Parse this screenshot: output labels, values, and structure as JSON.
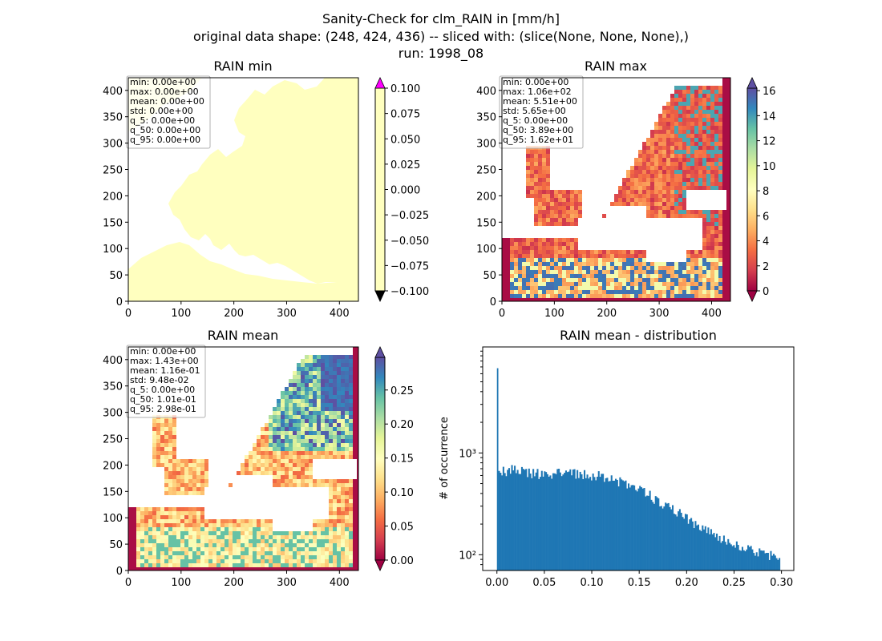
{
  "figure": {
    "title_lines": [
      "Sanity-Check for clm_RAIN in [mm/h]",
      "original data shape: (248, 424, 436) -- sliced with: (slice(None, None, None),)",
      "run: 1998_08"
    ]
  },
  "colors": {
    "cmap_spectral": [
      "#9e0142",
      "#d53e4f",
      "#f46d43",
      "#fdae61",
      "#fee08b",
      "#ffffbf",
      "#e6f598",
      "#abdda4",
      "#66c2a5",
      "#3288bd",
      "#5e4fa2"
    ],
    "min_over": "#ff00ff",
    "under": "#000000",
    "hist_bar": "#1f77b4",
    "stats_box_edge": "#b0b0b0",
    "map_flat": "#ffffbf"
  },
  "chart_data": [
    {
      "type": "heatmap",
      "title": "RAIN min",
      "xticks": [
        "0",
        "100",
        "200",
        "300",
        "400"
      ],
      "yticks": [
        "0",
        "50",
        "100",
        "150",
        "200",
        "250",
        "300",
        "350",
        "400"
      ],
      "xlim": [
        0,
        436
      ],
      "ylim": [
        0,
        424
      ],
      "stats": [
        "min: 0.00e+00",
        "max: 0.00e+00",
        "mean: 0.00e+00",
        "std: 0.00e+00",
        "q_5: 0.00e+00",
        "q_50: 0.00e+00",
        "q_95: 0.00e+00"
      ],
      "colorbar": {
        "ticks": [
          "0.100",
          "0.075",
          "0.050",
          "0.025",
          "0.000",
          "−0.025",
          "−0.050",
          "−0.075",
          "−0.100"
        ],
        "range": [
          -0.1,
          0.1
        ],
        "extend": "both"
      }
    },
    {
      "type": "heatmap",
      "title": "RAIN max",
      "xticks": [
        "0",
        "100",
        "200",
        "300",
        "400"
      ],
      "yticks": [
        "0",
        "50",
        "100",
        "150",
        "200",
        "250",
        "300",
        "350",
        "400"
      ],
      "xlim": [
        0,
        436
      ],
      "ylim": [
        0,
        424
      ],
      "stats": [
        "min: 0.00e+00",
        "max: 1.06e+02",
        "mean: 5.51e+00",
        "std: 5.65e+00",
        "q_5: 0.00e+00",
        "q_50: 3.89e+00",
        "q_95: 1.62e+01"
      ],
      "colorbar": {
        "ticks": [
          "16",
          "14",
          "12",
          "10",
          "8",
          "6",
          "4",
          "2",
          "0"
        ],
        "range": [
          0,
          16.2
        ],
        "extend": "both"
      }
    },
    {
      "type": "heatmap",
      "title": "RAIN mean",
      "xticks": [
        "0",
        "100",
        "200",
        "300",
        "400"
      ],
      "yticks": [
        "0",
        "50",
        "100",
        "150",
        "200",
        "250",
        "300",
        "350",
        "400"
      ],
      "xlim": [
        0,
        436
      ],
      "ylim": [
        0,
        424
      ],
      "stats": [
        "min: 0.00e+00",
        "max: 1.43e+00",
        "mean: 1.16e-01",
        "std: 9.48e-02",
        "q_5: 0.00e+00",
        "q_50: 1.01e-01",
        "q_95: 2.98e-01"
      ],
      "colorbar": {
        "ticks": [
          "0.25",
          "0.20",
          "0.15",
          "0.10",
          "0.05",
          "0.00"
        ],
        "range": [
          0,
          0.298
        ],
        "extend": "both"
      }
    },
    {
      "type": "bar",
      "title": "RAIN mean - distribution",
      "ylabel": "# of occurrence",
      "xlabel": "",
      "yscale": "log",
      "ylim": [
        70,
        11000
      ],
      "xlim": [
        -0.015,
        0.313
      ],
      "xticks": [
        "0.00",
        "0.05",
        "0.10",
        "0.15",
        "0.20",
        "0.25",
        "0.30"
      ],
      "yticks": [
        "10²",
        "10³"
      ],
      "bin_width": 0.0015,
      "zero_bin": 6800,
      "profile": [
        [
          0.0015,
          600
        ],
        [
          0.005,
          650
        ],
        [
          0.01,
          670
        ],
        [
          0.02,
          700
        ],
        [
          0.03,
          650
        ],
        [
          0.05,
          620
        ],
        [
          0.07,
          630
        ],
        [
          0.09,
          620
        ],
        [
          0.11,
          590
        ],
        [
          0.13,
          520
        ],
        [
          0.15,
          430
        ],
        [
          0.17,
          340
        ],
        [
          0.19,
          260
        ],
        [
          0.21,
          195
        ],
        [
          0.23,
          150
        ],
        [
          0.25,
          125
        ],
        [
          0.27,
          108
        ],
        [
          0.285,
          100
        ],
        [
          0.298,
          90
        ]
      ]
    }
  ]
}
